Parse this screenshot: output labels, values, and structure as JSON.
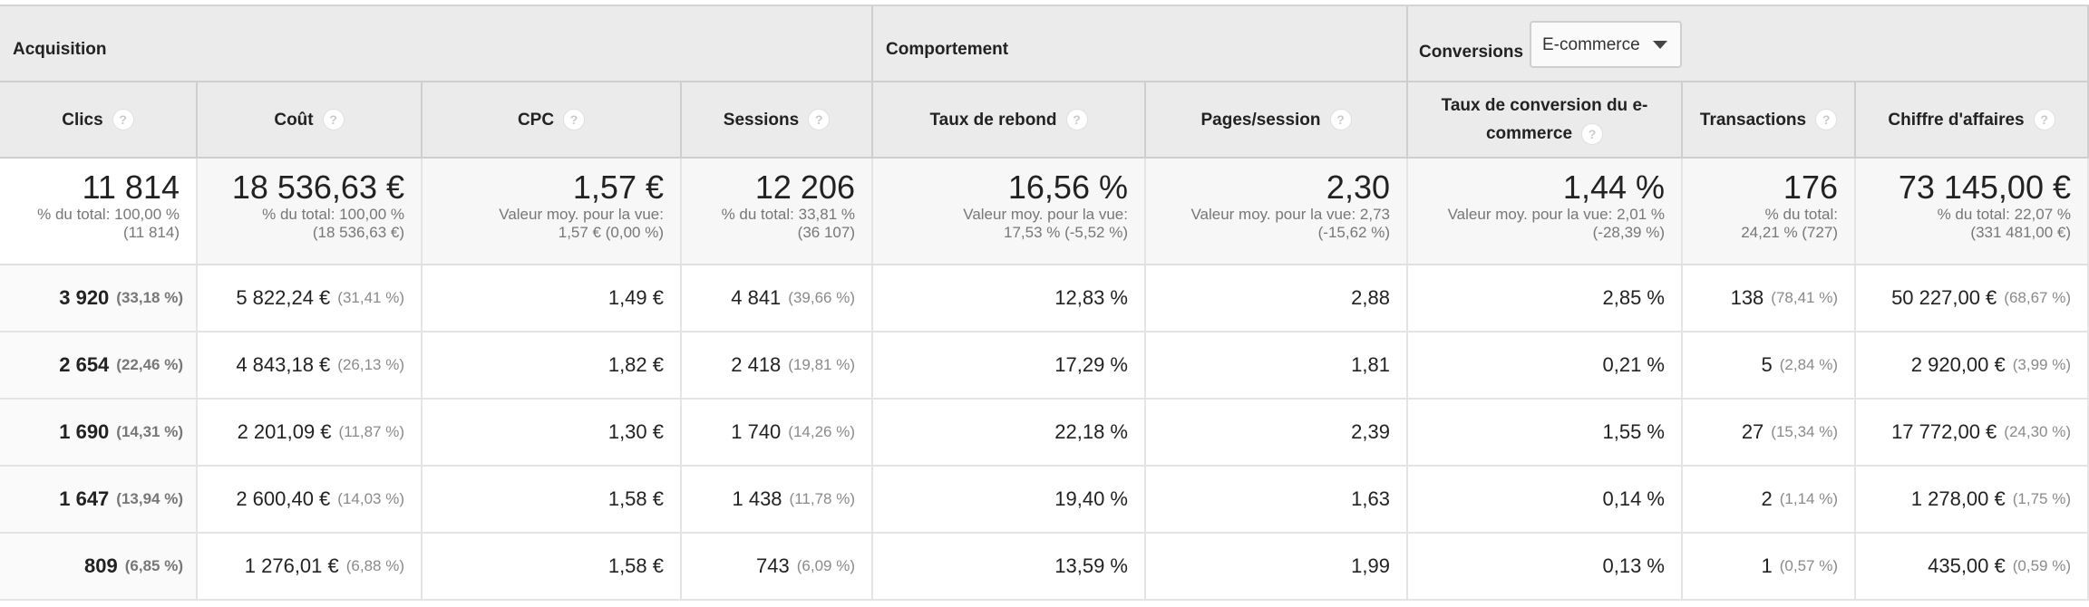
{
  "groups": {
    "acquisition": "Acquisition",
    "behavior": "Comportement",
    "conversions": "Conversions",
    "conversions_select": "E-commerce"
  },
  "columns": [
    {
      "label": "Clics"
    },
    {
      "label": "Coût"
    },
    {
      "label": "CPC"
    },
    {
      "label": "Sessions"
    },
    {
      "label": "Taux de rebond"
    },
    {
      "label": "Pages/session"
    },
    {
      "label": "Taux de conversion du e-commerce"
    },
    {
      "label": "Transactions"
    },
    {
      "label": "Chiffre d'affaires"
    }
  ],
  "totals": [
    {
      "value": "11 814",
      "sub1": "% du total: 100,00 %",
      "sub2": "(11 814)"
    },
    {
      "value": "18 536,63 €",
      "sub1": "% du total: 100,00 %",
      "sub2": "(18 536,63 €)"
    },
    {
      "value": "1,57 €",
      "sub1": "Valeur moy. pour la vue:",
      "sub2": "1,57 € (0,00 %)"
    },
    {
      "value": "12 206",
      "sub1": "% du total: 33,81 %",
      "sub2": "(36 107)"
    },
    {
      "value": "16,56 %",
      "sub1": "Valeur moy. pour la vue:",
      "sub2": "17,53 % (-5,52 %)"
    },
    {
      "value": "2,30",
      "sub1": "Valeur moy. pour la vue: 2,73",
      "sub2": "(-15,62 %)"
    },
    {
      "value": "1,44 %",
      "sub1": "Valeur moy. pour la vue: 2,01 %",
      "sub2": "(-28,39 %)"
    },
    {
      "value": "176",
      "sub1": "% du total:",
      "sub2": "24,21 % (727)"
    },
    {
      "value": "73 145,00 €",
      "sub1": "% du total: 22,07 %",
      "sub2": "(331 481,00 €)"
    }
  ],
  "rows": [
    [
      {
        "v": "3 920",
        "p": "(33,18 %)"
      },
      {
        "v": "5 822,24 €",
        "p": "(31,41 %)"
      },
      {
        "v": "1,49 €",
        "p": ""
      },
      {
        "v": "4 841",
        "p": "(39,66 %)"
      },
      {
        "v": "12,83 %",
        "p": ""
      },
      {
        "v": "2,88",
        "p": ""
      },
      {
        "v": "2,85 %",
        "p": ""
      },
      {
        "v": "138",
        "p": "(78,41 %)"
      },
      {
        "v": "50 227,00 €",
        "p": "(68,67 %)"
      }
    ],
    [
      {
        "v": "2 654",
        "p": "(22,46 %)"
      },
      {
        "v": "4 843,18 €",
        "p": "(26,13 %)"
      },
      {
        "v": "1,82 €",
        "p": ""
      },
      {
        "v": "2 418",
        "p": "(19,81 %)"
      },
      {
        "v": "17,29 %",
        "p": ""
      },
      {
        "v": "1,81",
        "p": ""
      },
      {
        "v": "0,21 %",
        "p": ""
      },
      {
        "v": "5",
        "p": "(2,84 %)"
      },
      {
        "v": "2 920,00 €",
        "p": "(3,99 %)"
      }
    ],
    [
      {
        "v": "1 690",
        "p": "(14,31 %)"
      },
      {
        "v": "2 201,09 €",
        "p": "(11,87 %)"
      },
      {
        "v": "1,30 €",
        "p": ""
      },
      {
        "v": "1 740",
        "p": "(14,26 %)"
      },
      {
        "v": "22,18 %",
        "p": ""
      },
      {
        "v": "2,39",
        "p": ""
      },
      {
        "v": "1,55 %",
        "p": ""
      },
      {
        "v": "27",
        "p": "(15,34 %)"
      },
      {
        "v": "17 772,00 €",
        "p": "(24,30 %)"
      }
    ],
    [
      {
        "v": "1 647",
        "p": "(13,94 %)"
      },
      {
        "v": "2 600,40 €",
        "p": "(14,03 %)"
      },
      {
        "v": "1,58 €",
        "p": ""
      },
      {
        "v": "1 438",
        "p": "(11,78 %)"
      },
      {
        "v": "19,40 %",
        "p": ""
      },
      {
        "v": "1,63",
        "p": ""
      },
      {
        "v": "0,14 %",
        "p": ""
      },
      {
        "v": "2",
        "p": "(1,14 %)"
      },
      {
        "v": "1 278,00 €",
        "p": "(1,75 %)"
      }
    ],
    [
      {
        "v": "809",
        "p": "(6,85 %)"
      },
      {
        "v": "1 276,01 €",
        "p": "(6,88 %)"
      },
      {
        "v": "1,58 €",
        "p": ""
      },
      {
        "v": "743",
        "p": "(6,09 %)"
      },
      {
        "v": "13,59 %",
        "p": ""
      },
      {
        "v": "1,99",
        "p": ""
      },
      {
        "v": "0,13 %",
        "p": ""
      },
      {
        "v": "1",
        "p": "(0,57 %)"
      },
      {
        "v": "435,00 €",
        "p": "(0,59 %)"
      }
    ]
  ]
}
